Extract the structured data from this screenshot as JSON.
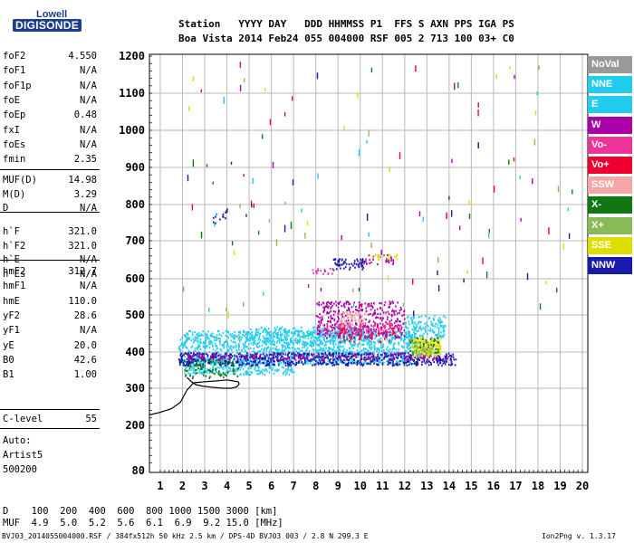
{
  "logo": {
    "top": "Lowell",
    "bottom": "DIGISONDE"
  },
  "header": {
    "line1": "Station   YYYY DAY   DDD HHMMSS P1  FFS S AXN PPS IGA PS",
    "line2": "Boa Vista 2014 Feb24 055 004000 RSF 005 2 713 100 03+ C0"
  },
  "params": {
    "group1": [
      {
        "name": "foF2",
        "value": "4.550"
      },
      {
        "name": "foF1",
        "value": "N/A"
      },
      {
        "name": "foF1p",
        "value": "N/A"
      },
      {
        "name": "foE",
        "value": "N/A"
      },
      {
        "name": "foEp",
        "value": "0.48"
      },
      {
        "name": "fxI",
        "value": "N/A"
      },
      {
        "name": "foEs",
        "value": "N/A"
      },
      {
        "name": "fmin",
        "value": "2.35"
      }
    ],
    "group2": [
      {
        "name": "MUF(D)",
        "value": "14.98"
      },
      {
        "name": "M(D)",
        "value": "3.29"
      },
      {
        "name": "D",
        "value": "N/A"
      }
    ],
    "group3": [
      {
        "name": "h`F",
        "value": "321.0"
      },
      {
        "name": "h`F2",
        "value": "321.0"
      },
      {
        "name": "h`E",
        "value": "N/A"
      },
      {
        "name": "h`Es",
        "value": "N/A"
      }
    ],
    "group4": [
      {
        "name": "hmF2",
        "value": "312.7"
      },
      {
        "name": "hmF1",
        "value": "N/A"
      },
      {
        "name": "hmE",
        "value": "110.0"
      },
      {
        "name": "yF2",
        "value": "28.6"
      },
      {
        "name": "yF1",
        "value": "N/A"
      },
      {
        "name": "yE",
        "value": "20.0"
      },
      {
        "name": "B0",
        "value": "42.6"
      },
      {
        "name": "B1",
        "value": "1.00"
      }
    ],
    "group5": [
      {
        "name": "C-level",
        "value": "55"
      }
    ]
  },
  "autoscale": {
    "line1": "Auto:",
    "line2": "Artist5",
    "line3": "500200"
  },
  "legend": [
    {
      "label": "NoVal",
      "color": "#999999"
    },
    {
      "label": "NNE",
      "color": "#22ccee"
    },
    {
      "label": "E",
      "color": "#22ccee"
    },
    {
      "label": "W",
      "color": "#aa00aa"
    },
    {
      "label": "Vo-",
      "color": "#ee3399"
    },
    {
      "label": "Vo+",
      "color": "#ee0033"
    },
    {
      "label": "SSW",
      "color": "#f4a6a6"
    },
    {
      "label": "X-",
      "color": "#117711"
    },
    {
      "label": "X+",
      "color": "#88bb55"
    },
    {
      "label": "SSE",
      "color": "#dddd00"
    },
    {
      "label": "NNW",
      "color": "#1a1aaa"
    }
  ],
  "bottom": {
    "d_row": "D    100  200  400  600  800 1000 1500 3000 [km]",
    "muf_row": "MUF  4.9  5.0  5.2  5.6  6.1  6.9  9.2 15.0 [MHz]"
  },
  "footer": {
    "left": "BVJ03_2014055004000.RSF / 384fx512h 50 kHz 2.5 km / DPS-4D BVJ03 003 / 2.8 N 299.3 E",
    "right": "Ion2Png v. 1.3.17"
  },
  "chart_data": {
    "type": "scatter",
    "title": "",
    "xlabel": "",
    "ylabel": "",
    "xlim": [
      0.5,
      20.0
    ],
    "ylim": [
      80,
      1200
    ],
    "xticks": [
      1,
      2,
      3,
      4,
      5,
      6,
      7,
      8,
      9,
      10,
      11,
      12,
      13,
      14,
      15,
      16,
      17,
      18,
      19,
      20
    ],
    "yticks": [
      80,
      200,
      300,
      400,
      500,
      600,
      700,
      800,
      900,
      1000,
      1100,
      1200
    ],
    "grid": true,
    "legend_position": "right-outside",
    "series": [
      {
        "name": "NNE",
        "color": "#22ccee",
        "clusters": [
          {
            "x": [
              1.8,
              12.5
            ],
            "y": [
              370,
              460
            ],
            "density": 1400
          },
          {
            "x": [
              2.0,
              7.0
            ],
            "y": [
              340,
              380
            ],
            "density": 300
          },
          {
            "x": [
              5.0,
              10.5
            ],
            "y": [
              420,
              470
            ],
            "density": 300
          },
          {
            "x": [
              12.0,
              13.8
            ],
            "y": [
              440,
              500
            ],
            "density": 150
          }
        ]
      },
      {
        "name": "NNW",
        "color": "#1a1aaa",
        "clusters": [
          {
            "x": [
              1.8,
              14.3
            ],
            "y": [
              365,
              400
            ],
            "density": 700
          },
          {
            "x": [
              8.6,
              10.2
            ],
            "y": [
              625,
              655
            ],
            "density": 60
          },
          {
            "x": [
              3.2,
              4.0
            ],
            "y": [
              750,
              790
            ],
            "density": 15
          }
        ]
      },
      {
        "name": "W",
        "color": "#aa00aa",
        "clusters": [
          {
            "x": [
              8.0,
              12.0
            ],
            "y": [
              440,
              540
            ],
            "density": 400
          },
          {
            "x": [
              2.0,
              14.0
            ],
            "y": [
              380,
              400
            ],
            "density": 200
          },
          {
            "x": [
              9.8,
              11.5
            ],
            "y": [
              640,
              665
            ],
            "density": 30
          }
        ]
      },
      {
        "name": "SSE",
        "color": "#dddd00",
        "clusters": [
          {
            "x": [
              12.3,
              13.6
            ],
            "y": [
              390,
              440
            ],
            "density": 200
          },
          {
            "x": [
              10.5,
              11.7
            ],
            "y": [
              650,
              670
            ],
            "density": 20
          }
        ]
      },
      {
        "name": "Vo-",
        "color": "#ee3399",
        "clusters": [
          {
            "x": [
              8.3,
              11.8
            ],
            "y": [
              450,
              480
            ],
            "density": 120
          },
          {
            "x": [
              7.8,
              8.8
            ],
            "y": [
              615,
              630
            ],
            "density": 15
          }
        ]
      },
      {
        "name": "Vo+",
        "color": "#ee0033",
        "clusters": [
          {
            "x": [
              9.0,
              11.5
            ],
            "y": [
              430,
              470
            ],
            "density": 50
          }
        ]
      },
      {
        "name": "SSW",
        "color": "#f4a6a6",
        "clusters": [
          {
            "x": [
              9.0,
              10.2
            ],
            "y": [
              470,
              510
            ],
            "density": 60
          }
        ]
      },
      {
        "name": "X-",
        "color": "#117711",
        "clusters": [
          {
            "x": [
              2.0,
              4.5
            ],
            "y": [
              330,
              380
            ],
            "density": 80
          },
          {
            "x": [
              12.2,
              13.5
            ],
            "y": [
              400,
              440
            ],
            "density": 40
          }
        ]
      },
      {
        "name": "X+",
        "color": "#88bb55",
        "clusters": [
          {
            "x": [
              12.4,
              13.3
            ],
            "y": [
              395,
              430
            ],
            "density": 40
          }
        ]
      }
    ],
    "profile_curve": {
      "x": [
        0.5,
        1.0,
        1.5,
        1.9,
        2.2,
        2.5,
        3.0,
        3.5,
        4.0,
        4.5,
        4.55,
        4.45,
        4.2,
        3.8,
        3.3,
        2.9,
        2.6,
        2.4,
        2.2
      ],
      "y": [
        228,
        235,
        245,
        262,
        295,
        315,
        318,
        320,
        323,
        318,
        312,
        304,
        300,
        300,
        303,
        306,
        310,
        318,
        330
      ]
    }
  }
}
